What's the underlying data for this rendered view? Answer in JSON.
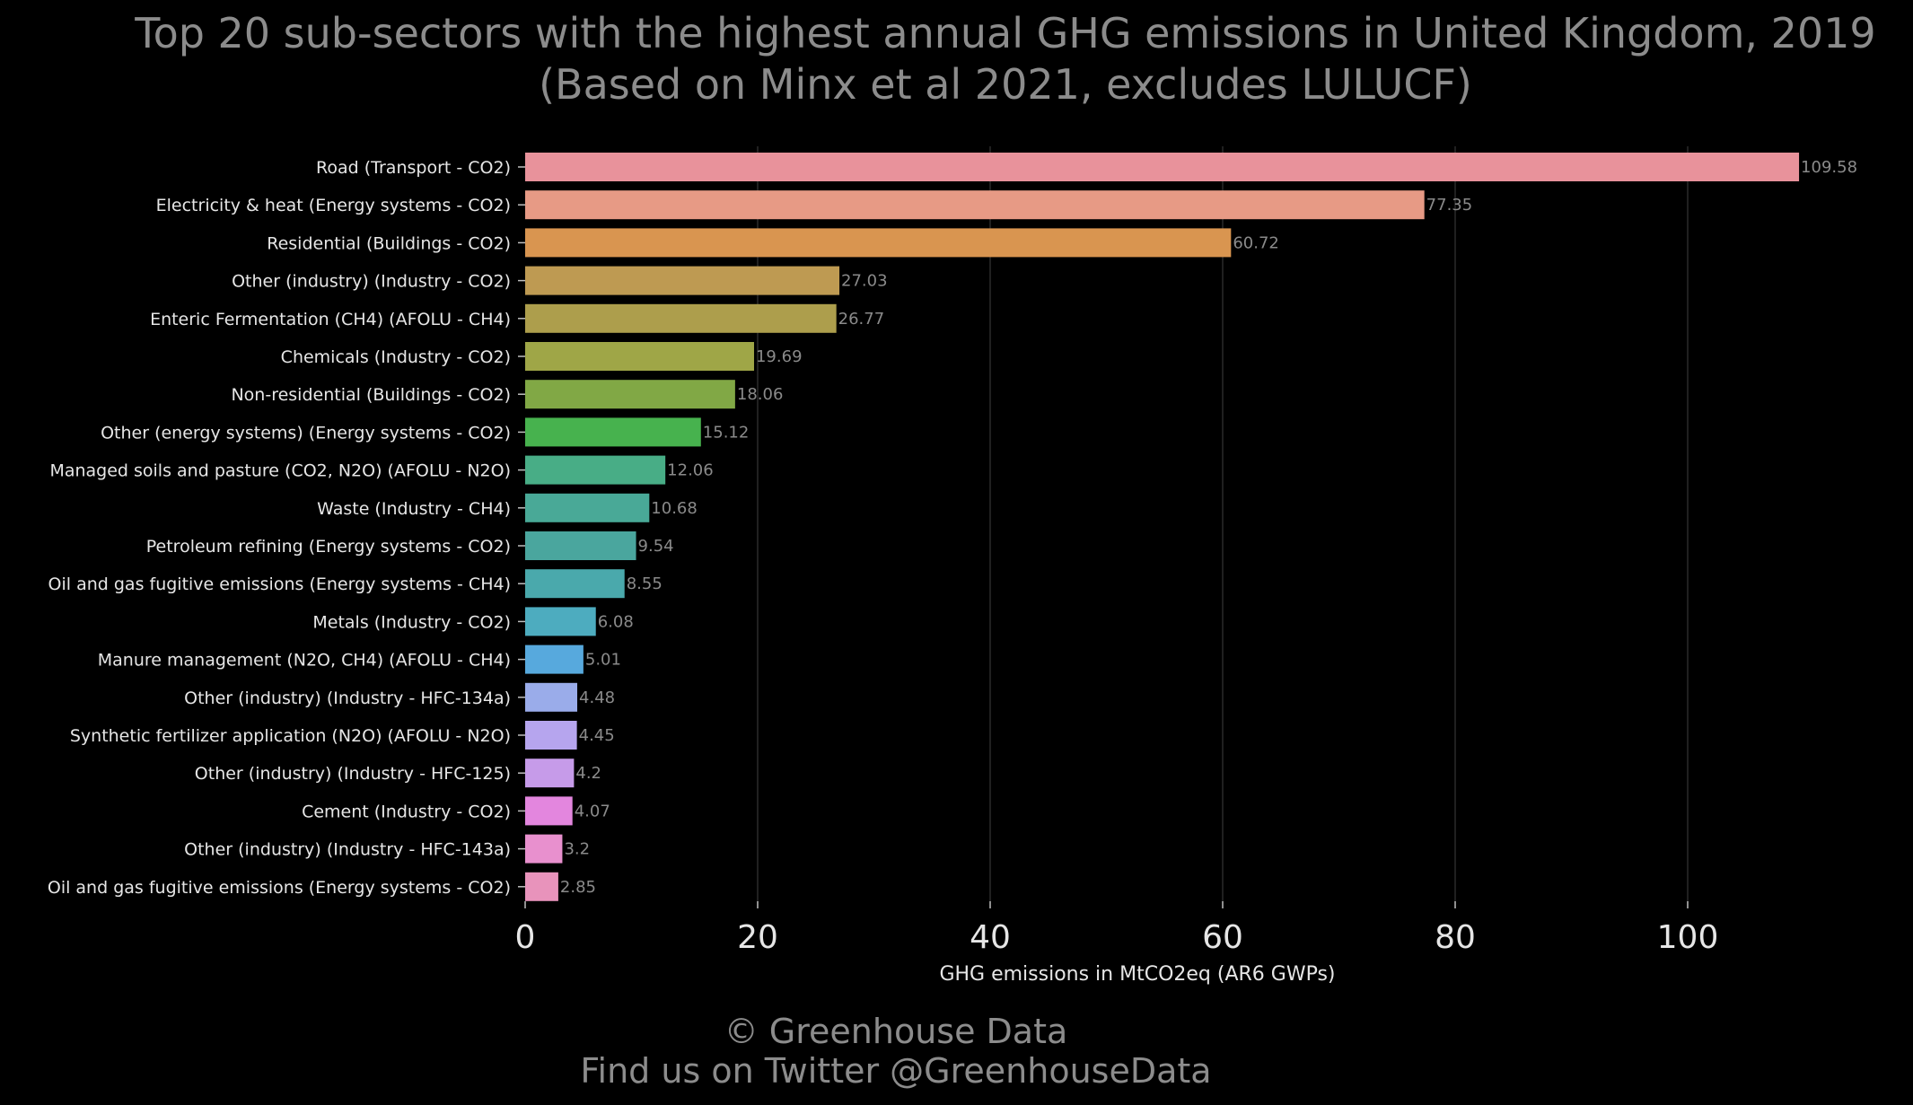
{
  "chart_data": {
    "type": "bar",
    "orientation": "horizontal",
    "title": "Top 20 sub-sectors with the highest annual GHG emissions in United Kingdom, 2019",
    "subtitle": "(Based on Minx et al 2021, excludes LULUCF)",
    "xlabel": "GHG emissions in MtCO2eq (AR6 GWPs)",
    "ylabel": "",
    "xlim": [
      0,
      110
    ],
    "xticks": [
      0,
      20,
      40,
      60,
      80,
      100
    ],
    "grid": "vertical",
    "categories": [
      "Road (Transport - CO2)",
      "Electricity & heat (Energy systems - CO2)",
      "Residential (Buildings - CO2)",
      "Other (industry) (Industry - CO2)",
      "Enteric Fermentation (CH4) (AFOLU - CH4)",
      "Chemicals (Industry - CO2)",
      "Non-residential (Buildings - CO2)",
      "Other (energy systems) (Energy systems - CO2)",
      "Managed soils and pasture (CO2, N2O) (AFOLU - N2O)",
      "Waste (Industry - CH4)",
      "Petroleum refining (Energy systems - CO2)",
      "Oil and gas fugitive emissions (Energy systems - CH4)",
      "Metals (Industry - CO2)",
      "Manure management (N2O, CH4) (AFOLU - CH4)",
      "Other (industry) (Industry - HFC-134a)",
      "Synthetic fertilizer application (N2O) (AFOLU - N2O)",
      "Other (industry) (Industry - HFC-125)",
      "Cement (Industry - CO2)",
      "Other (industry) (Industry - HFC-143a)",
      "Oil and gas fugitive emissions (Energy systems - CO2)"
    ],
    "values": [
      109.58,
      77.35,
      60.72,
      27.03,
      26.77,
      19.69,
      18.06,
      15.12,
      12.06,
      10.68,
      9.54,
      8.55,
      6.08,
      5.01,
      4.48,
      4.45,
      4.2,
      4.07,
      3.2,
      2.85
    ],
    "value_labels": [
      "109.58",
      "77.35",
      "60.72",
      "27.03",
      "26.77",
      "19.69",
      "18.06",
      "15.12",
      "12.06",
      "10.68",
      "9.54",
      "8.55",
      "6.08",
      "5.01",
      "4.48",
      "4.45",
      "4.2",
      "4.07",
      "3.2",
      "2.85"
    ],
    "colors": [
      "#e8929b",
      "#e79a85",
      "#d99550",
      "#be9a52",
      "#ad9e4c",
      "#9fa647",
      "#81a845",
      "#47b24e",
      "#48ad86",
      "#49a997",
      "#4aa69e",
      "#4aa9ac",
      "#4dacbf",
      "#57a9dd",
      "#9aacea",
      "#b6a5ee",
      "#c69be9",
      "#e386de",
      "#e890ce",
      "#e893bb"
    ]
  },
  "credit": {
    "line1": "© Greenhouse Data",
    "line2": "Find us on Twitter @GreenhouseData"
  },
  "colors": {
    "background": "#000000",
    "text_muted": "#8c8c8c",
    "text_light": "#e6e6e6",
    "grid": "#2a2a2a"
  }
}
